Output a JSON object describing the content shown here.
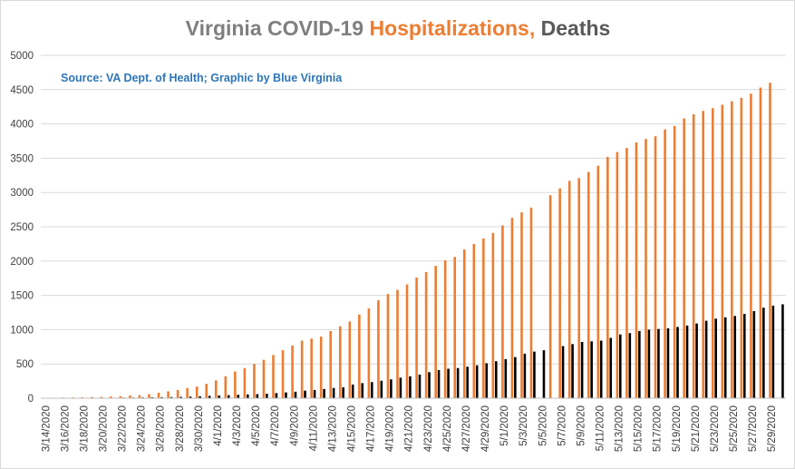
{
  "chart_data": {
    "type": "bar",
    "title": {
      "part1": "Virginia COVID-19 ",
      "part2": "Hospitalizations,",
      "part3": " Deaths"
    },
    "subtitle": "Source: VA Dept. of Health; Graphic by Blue Virginia",
    "colors": {
      "title_gray": "#7f7f7f",
      "title_orange": "#ed7d31",
      "title_dark": "#595959",
      "subtitle": "#2e75b6",
      "hospitalizations": "#ed7d31",
      "deaths": "#000000",
      "gridline": "#d9d9d9",
      "axis": "#bfbfbf"
    },
    "ylim": [
      0,
      5000
    ],
    "yticks": [
      "0",
      "500",
      "1000",
      "1500",
      "2000",
      "2500",
      "3000",
      "3500",
      "4000",
      "4500",
      "5000"
    ],
    "grid": true,
    "legend": "none",
    "categories": [
      "3/14/2020",
      "3/15/2020",
      "3/16/2020",
      "3/17/2020",
      "3/18/2020",
      "3/19/2020",
      "3/20/2020",
      "3/21/2020",
      "3/22/2020",
      "3/23/2020",
      "3/24/2020",
      "3/25/2020",
      "3/26/2020",
      "3/27/2020",
      "3/28/2020",
      "3/29/2020",
      "3/30/2020",
      "3/31/2020",
      "4/1/2020",
      "4/2/2020",
      "4/3/2020",
      "4/4/2020",
      "4/5/2020",
      "4/6/2020",
      "4/7/2020",
      "4/8/2020",
      "4/9/2020",
      "4/10/2020",
      "4/11/2020",
      "4/12/2020",
      "4/13/2020",
      "4/14/2020",
      "4/15/2020",
      "4/16/2020",
      "4/17/2020",
      "4/18/2020",
      "4/19/2020",
      "4/20/2020",
      "4/21/2020",
      "4/22/2020",
      "4/23/2020",
      "4/24/2020",
      "4/25/2020",
      "4/26/2020",
      "4/27/2020",
      "4/28/2020",
      "4/29/2020",
      "4/30/2020",
      "5/1/2020",
      "5/2/2020",
      "5/3/2020",
      "5/4/2020",
      "5/5/2020",
      "5/6/2020",
      "5/7/2020",
      "5/8/2020",
      "5/9/2020",
      "5/10/2020",
      "5/11/2020",
      "5/12/2020",
      "5/13/2020",
      "5/14/2020",
      "5/15/2020",
      "5/16/2020",
      "5/17/2020",
      "5/18/2020",
      "5/19/2020",
      "5/20/2020",
      "5/21/2020",
      "5/22/2020",
      "5/23/2020",
      "5/24/2020",
      "5/25/2020",
      "5/26/2020",
      "5/27/2020",
      "5/28/2020",
      "5/29/2020",
      "5/30/2020"
    ],
    "xtick_labels": [
      "3/14/2020",
      "3/16/2020",
      "3/18/2020",
      "3/20/2020",
      "3/22/2020",
      "3/24/2020",
      "3/26/2020",
      "3/28/2020",
      "3/30/2020",
      "4/1/2020",
      "4/3/2020",
      "4/5/2020",
      "4/7/2020",
      "4/9/2020",
      "4/11/2020",
      "4/13/2020",
      "4/15/2020",
      "4/17/2020",
      "4/19/2020",
      "4/21/2020",
      "4/23/2020",
      "4/25/2020",
      "4/27/2020",
      "4/29/2020",
      "5/1/2020",
      "5/3/2020",
      "5/5/2020",
      "5/7/2020",
      "5/9/2020",
      "5/11/2020",
      "5/13/2020",
      "5/15/2020",
      "5/17/2020",
      "5/19/2020",
      "5/21/2020",
      "5/23/2020",
      "5/25/2020",
      "5/27/2020",
      "5/29/2020"
    ],
    "series": [
      {
        "name": "Hospitalizations",
        "values": [
          5,
          8,
          10,
          12,
          15,
          18,
          20,
          25,
          30,
          40,
          45,
          60,
          80,
          100,
          120,
          150,
          170,
          210,
          260,
          320,
          390,
          440,
          500,
          560,
          630,
          700,
          770,
          840,
          870,
          900,
          980,
          1050,
          1120,
          1220,
          1310,
          1430,
          1520,
          1580,
          1660,
          1760,
          1840,
          1930,
          2010,
          2060,
          2170,
          2250,
          2330,
          2410,
          2520,
          2630,
          2710,
          2780,
          null,
          2960,
          3060,
          3170,
          3210,
          3300,
          3390,
          3520,
          3590,
          3650,
          3730,
          3780,
          3820,
          3920,
          3970,
          4080,
          4140,
          4190,
          4230,
          4280,
          4330,
          4380,
          4440,
          4530,
          4600,
          null
        ]
      },
      {
        "name": "Deaths",
        "values": [
          2,
          2,
          2,
          3,
          3,
          5,
          6,
          7,
          9,
          10,
          12,
          14,
          15,
          17,
          20,
          24,
          28,
          35,
          40,
          45,
          50,
          55,
          60,
          65,
          75,
          85,
          95,
          110,
          120,
          135,
          150,
          160,
          200,
          220,
          235,
          255,
          275,
          300,
          320,
          345,
          380,
          410,
          430,
          440,
          460,
          480,
          510,
          540,
          570,
          600,
          650,
          680,
          700,
          null,
          760,
          790,
          820,
          830,
          840,
          880,
          930,
          950,
          980,
          1000,
          1010,
          1020,
          1040,
          1060,
          1090,
          1130,
          1160,
          1180,
          1200,
          1230,
          1270,
          1320,
          1350,
          1370
        ]
      }
    ]
  }
}
